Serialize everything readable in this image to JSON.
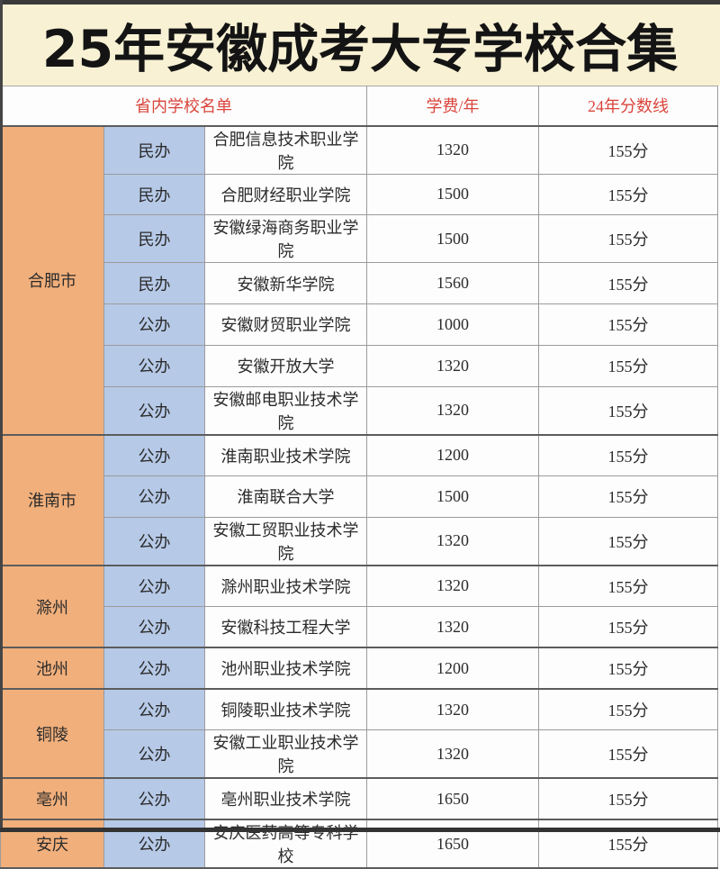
{
  "title": "25年安徽成考大专学校合集",
  "header": {
    "school_list": "省内学校名单",
    "tuition": "学费/年",
    "score": "24年分数线"
  },
  "colors": {
    "banner_bg": "#F8F1D4",
    "title_text": "#141414",
    "city_bg": "#F1AF7B",
    "type_bg": "#B6C9E7",
    "header_text": "#D9453C",
    "body_text": "#2B2B2B",
    "border_light": "#9B9B9B",
    "border_dark": "#5C5C5C",
    "photo_edge": "#3A3A3A"
  },
  "groups": [
    {
      "city": "合肥市",
      "rows": [
        {
          "type": "民办",
          "school": "合肥信息技术职业学院",
          "tuition": "1320",
          "score": "155分"
        },
        {
          "type": "民办",
          "school": "合肥财经职业学院",
          "tuition": "1500",
          "score": "155分"
        },
        {
          "type": "民办",
          "school": "安徽绿海商务职业学院",
          "tuition": "1500",
          "score": "155分"
        },
        {
          "type": "民办",
          "school": "安徽新华学院",
          "tuition": "1560",
          "score": "155分"
        },
        {
          "type": "公办",
          "school": "安徽财贸职业学院",
          "tuition": "1000",
          "score": "155分"
        },
        {
          "type": "公办",
          "school": "安徽开放大学",
          "tuition": "1320",
          "score": "155分"
        },
        {
          "type": "公办",
          "school": "安徽邮电职业技术学院",
          "tuition": "1320",
          "score": "155分"
        }
      ]
    },
    {
      "city": "淮南市",
      "rows": [
        {
          "type": "公办",
          "school": "淮南职业技术学院",
          "tuition": "1200",
          "score": "155分"
        },
        {
          "type": "公办",
          "school": "淮南联合大学",
          "tuition": "1500",
          "score": "155分"
        },
        {
          "type": "公办",
          "school": "安徽工贸职业技术学院",
          "tuition": "1320",
          "score": "155分"
        }
      ]
    },
    {
      "city": "滁州",
      "rows": [
        {
          "type": "公办",
          "school": "滁州职业技术学院",
          "tuition": "1320",
          "score": "155分"
        },
        {
          "type": "公办",
          "school": "安徽科技工程大学",
          "tuition": "1320",
          "score": "155分"
        }
      ]
    },
    {
      "city": "池州",
      "rows": [
        {
          "type": "公办",
          "school": "池州职业技术学院",
          "tuition": "1200",
          "score": "155分"
        }
      ]
    },
    {
      "city": "铜陵",
      "rows": [
        {
          "type": "公办",
          "school": "铜陵职业技术学院",
          "tuition": "1320",
          "score": "155分"
        },
        {
          "type": "公办",
          "school": "安徽工业职业技术学院",
          "tuition": "1320",
          "score": "155分"
        }
      ]
    },
    {
      "city": "亳州",
      "rows": [
        {
          "type": "公办",
          "school": "亳州职业技术学院",
          "tuition": "1650",
          "score": "155分"
        }
      ]
    },
    {
      "city": "安庆",
      "rows": [
        {
          "type": "公办",
          "school": "安庆医药高等专科学校",
          "tuition": "1650",
          "score": "155分"
        }
      ]
    }
  ]
}
